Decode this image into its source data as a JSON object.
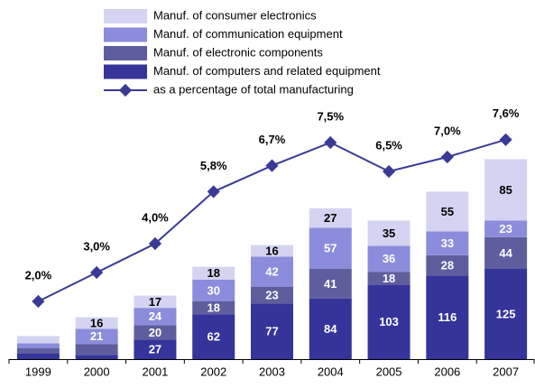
{
  "chart_data": {
    "type": "bar",
    "stacked": true,
    "categories": [
      "1999",
      "2000",
      "2001",
      "2002",
      "2003",
      "2004",
      "2005",
      "2006",
      "2007"
    ],
    "series": [
      {
        "name": "Manuf. of consumer electronics",
        "color": "#d4d4f2",
        "values": [
          10,
          16,
          17,
          18,
          16,
          27,
          35,
          55,
          85
        ]
      },
      {
        "name": "Manuf. of communication equipment",
        "color": "#8c8cdc",
        "values": [
          7,
          21,
          24,
          30,
          42,
          57,
          36,
          33,
          23
        ]
      },
      {
        "name": "Manuf. of electronic components",
        "color": "#5e5e9e",
        "values": [
          7,
          15,
          20,
          18,
          23,
          41,
          18,
          28,
          44
        ]
      },
      {
        "name": "Manuf. of computers and related equipment",
        "color": "#34349a",
        "values": [
          8,
          6,
          27,
          62,
          77,
          84,
          103,
          116,
          125
        ]
      },
      {
        "name": "as a percentage of total manufacturing",
        "type": "line",
        "axis": "y2",
        "color": "#3a3a96",
        "values": [
          2.0,
          3.0,
          4.0,
          5.8,
          6.7,
          7.5,
          6.5,
          7.0,
          7.6
        ],
        "value_labels": [
          "2,0%",
          "3,0%",
          "4,0%",
          "5,8%",
          "6,7%",
          "7,5%",
          "6,5%",
          "7,0%",
          "7,6%"
        ]
      }
    ],
    "ylim": [
      0,
      320
    ],
    "y2lim": [
      0,
      8
    ]
  }
}
